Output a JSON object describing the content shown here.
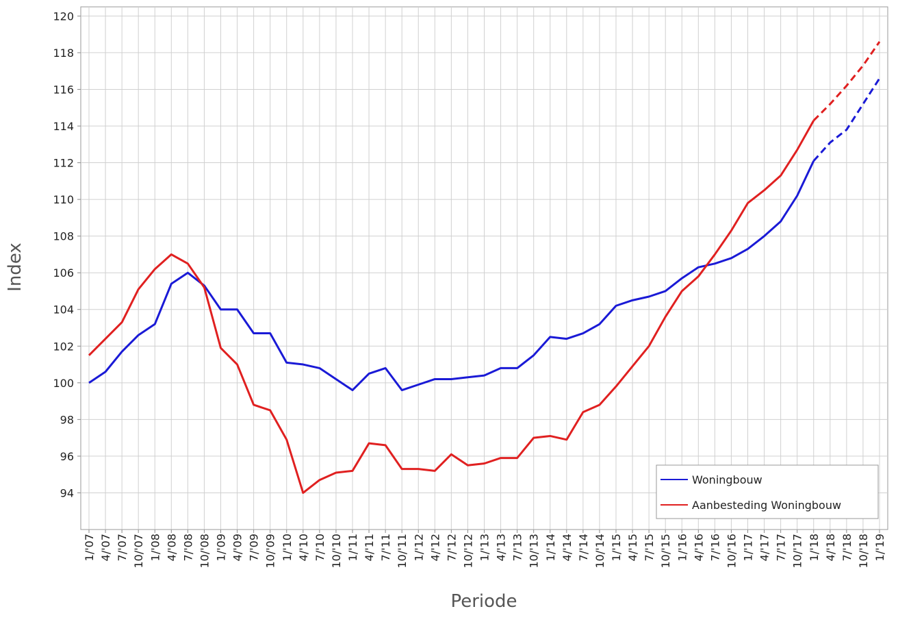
{
  "chart_data": {
    "type": "line",
    "x_label": "Periode",
    "y_label": "Index",
    "categories": [
      "1/'07",
      "4/'07",
      "7/'07",
      "10/'07",
      "1/'08",
      "4/'08",
      "7/'08",
      "10/'08",
      "1/'09",
      "4/'09",
      "7/'09",
      "10/'09",
      "1/'10",
      "4/'10",
      "7/'10",
      "10/'10",
      "1/'11",
      "4/'11",
      "7/'11",
      "10/'11",
      "1/'12",
      "4/'12",
      "7/'12",
      "10/'12",
      "1/'13",
      "4/'13",
      "7/'13",
      "10/'13",
      "1/'14",
      "4/'14",
      "7/'14",
      "10/'14",
      "1/'15",
      "4/'15",
      "7/'15",
      "10/'15",
      "1/'16",
      "4/'16",
      "7/'16",
      "10/'16",
      "1/'17",
      "4/'17",
      "7/'17",
      "10/'17",
      "1/'18",
      "4/'18",
      "7/'18",
      "10/'18",
      "1/'19"
    ],
    "series": [
      {
        "name": "Woningbouw",
        "color": "#1a1ad6",
        "values": [
          100.0,
          100.6,
          101.7,
          102.6,
          103.2,
          105.4,
          106.0,
          105.3,
          104.0,
          104.0,
          102.7,
          102.7,
          101.1,
          101.0,
          100.8,
          100.2,
          99.6,
          100.5,
          100.8,
          99.6,
          99.9,
          100.2,
          100.2,
          100.3,
          100.4,
          100.8,
          100.8,
          101.5,
          102.5,
          102.4,
          102.7,
          103.2,
          104.2,
          104.5,
          104.7,
          105.0,
          105.7,
          106.3,
          106.5,
          106.8,
          107.3,
          108.0,
          108.8,
          110.2,
          112.1,
          113.1,
          113.8,
          115.2,
          116.6
        ]
      },
      {
        "name": "Aanbesteding Woningbouw",
        "color": "#e02020",
        "values": [
          101.5,
          102.4,
          103.3,
          105.1,
          106.2,
          107.0,
          106.5,
          105.2,
          101.9,
          101.0,
          98.8,
          98.5,
          96.9,
          94.0,
          94.7,
          95.1,
          95.2,
          96.7,
          96.6,
          95.3,
          95.3,
          95.2,
          96.1,
          95.5,
          95.6,
          95.9,
          95.9,
          97.0,
          97.1,
          96.9,
          98.4,
          98.8,
          99.8,
          100.9,
          102.0,
          103.6,
          105.0,
          105.8,
          107.0,
          108.3,
          109.8,
          110.5,
          111.3,
          112.7,
          114.3,
          115.2,
          116.2,
          117.3,
          118.6
        ]
      }
    ],
    "dashed_from_index": 44,
    "ylim": [
      92,
      120.5
    ],
    "yticks": [
      94,
      96,
      98,
      100,
      102,
      104,
      106,
      108,
      110,
      112,
      114,
      116,
      118,
      120
    ],
    "grid": true,
    "legend": "bottom-right"
  }
}
